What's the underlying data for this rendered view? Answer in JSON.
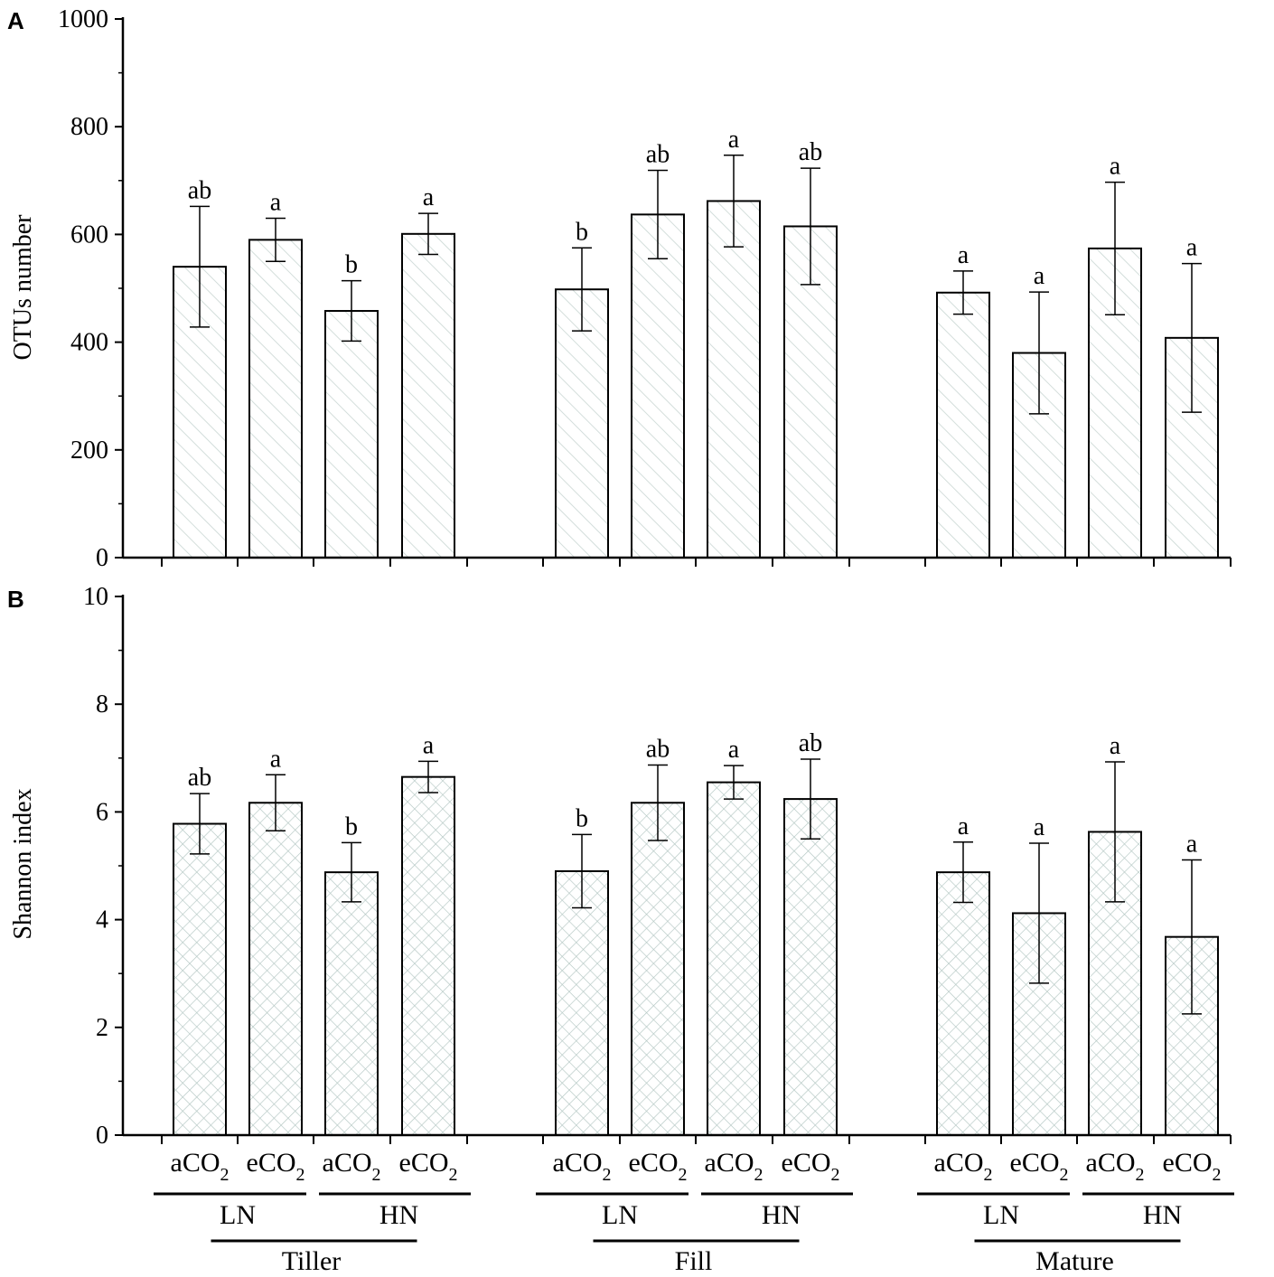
{
  "chart_data": [
    {
      "type": "bar",
      "panel": "A",
      "ylabel": "OTUs number",
      "ylim": [
        0,
        1000
      ],
      "yticks": [
        "0",
        "200",
        "400",
        "600",
        "800",
        "1000"
      ],
      "hatch": "diagonal",
      "bar_color": "#c9d6d2",
      "groups": [
        {
          "stage": "Tiller",
          "bars": [
            {
              "value": 540,
              "err": 112,
              "sig": "ab"
            },
            {
              "value": 590,
              "err": 40,
              "sig": "a"
            },
            {
              "value": 458,
              "err": 56,
              "sig": "b"
            },
            {
              "value": 601,
              "err": 38,
              "sig": "a"
            }
          ]
        },
        {
          "stage": "Fill",
          "bars": [
            {
              "value": 498,
              "err": 77,
              "sig": "b"
            },
            {
              "value": 637,
              "err": 82,
              "sig": "ab"
            },
            {
              "value": 662,
              "err": 85,
              "sig": "a"
            },
            {
              "value": 615,
              "err": 108,
              "sig": "ab"
            }
          ]
        },
        {
          "stage": "Mature",
          "bars": [
            {
              "value": 492,
              "err": 40,
              "sig": "a"
            },
            {
              "value": 380,
              "err": 113,
              "sig": "a"
            },
            {
              "value": 574,
              "err": 123,
              "sig": "a"
            },
            {
              "value": 408,
              "err": 138,
              "sig": "a"
            }
          ]
        }
      ]
    },
    {
      "type": "bar",
      "panel": "B",
      "ylabel": "Shannon index",
      "ylim": [
        0,
        10
      ],
      "yticks": [
        "0",
        "2",
        "4",
        "6",
        "8",
        "10"
      ],
      "hatch": "crosshatch",
      "bar_color": "#b4c7c3",
      "groups": [
        {
          "stage": "Tiller",
          "bars": [
            {
              "value": 5.78,
              "err": 0.56,
              "sig": "ab"
            },
            {
              "value": 6.17,
              "err": 0.52,
              "sig": "a"
            },
            {
              "value": 4.88,
              "err": 0.55,
              "sig": "b"
            },
            {
              "value": 6.65,
              "err": 0.29,
              "sig": "a"
            }
          ]
        },
        {
          "stage": "Fill",
          "bars": [
            {
              "value": 4.9,
              "err": 0.68,
              "sig": "b"
            },
            {
              "value": 6.17,
              "err": 0.7,
              "sig": "ab"
            },
            {
              "value": 6.55,
              "err": 0.31,
              "sig": "a"
            },
            {
              "value": 6.24,
              "err": 0.74,
              "sig": "ab"
            }
          ]
        },
        {
          "stage": "Mature",
          "bars": [
            {
              "value": 4.88,
              "err": 0.56,
              "sig": "a"
            },
            {
              "value": 4.12,
              "err": 1.3,
              "sig": "a"
            },
            {
              "value": 5.63,
              "err": 1.3,
              "sig": "a"
            },
            {
              "value": 3.68,
              "err": 1.43,
              "sig": "a"
            }
          ]
        }
      ]
    }
  ],
  "x_axis": {
    "co2_labels": [
      {
        "prefix": "aCO",
        "sub": "2"
      },
      {
        "prefix": "eCO",
        "sub": "2"
      },
      {
        "prefix": "aCO",
        "sub": "2"
      },
      {
        "prefix": "eCO",
        "sub": "2"
      }
    ],
    "n_labels": [
      "LN",
      "HN"
    ],
    "stages": [
      "Tiller",
      "Fill",
      "Mature"
    ]
  }
}
